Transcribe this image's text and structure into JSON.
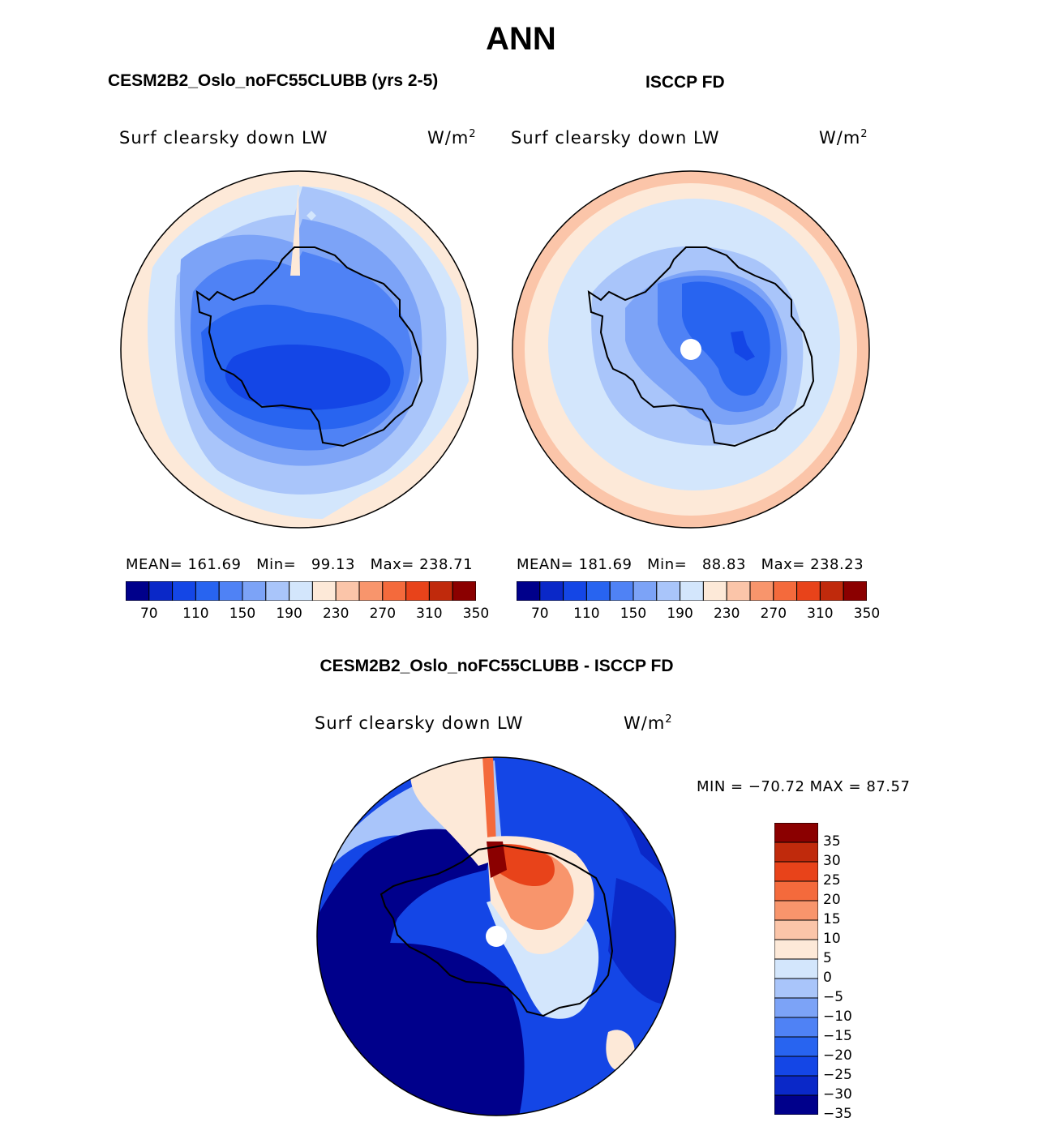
{
  "figure": {
    "title": "ANN",
    "left_panel": {
      "case_title": "CESM2B2_Oslo_noFC55CLUBB (yrs 2-5)",
      "variable": "Surf clearsky down LW",
      "units": "W/m",
      "units_exp": "2",
      "mean_label": "MEAN=",
      "mean": "161.69",
      "min_label": "Min=",
      "min": "99.13",
      "max_label": "Max=",
      "max": "238.71"
    },
    "right_panel": {
      "case_title": "ISCCP FD",
      "variable": "Surf clearsky down LW",
      "units": "W/m",
      "units_exp": "2",
      "mean_label": "MEAN=",
      "mean": "181.69",
      "min_label": "Min=",
      "min": "88.83",
      "max_label": "Max=",
      "max": "238.23"
    },
    "diff_panel": {
      "case_title": "CESM2B2_Oslo_noFC55CLUBB - ISCCP FD",
      "variable": "Surf clearsky down LW",
      "units": "W/m",
      "units_exp": "2",
      "minmax": "MIN = −70.72 MAX =  87.57"
    }
  },
  "colorbar_abs": {
    "colors": [
      "#00008b",
      "#0a28c8",
      "#1446e6",
      "#2864f0",
      "#4f82f5",
      "#7ca3f7",
      "#a9c5fa",
      "#d3e6fc",
      "#fde9d8",
      "#fbc5a9",
      "#f8956c",
      "#f46a3c",
      "#e8431a",
      "#c02a0c",
      "#8b0000"
    ],
    "tick_labels": [
      "70",
      "110",
      "150",
      "190",
      "230",
      "270",
      "310",
      "350"
    ]
  },
  "colorbar_diff": {
    "colors": [
      "#8b0000",
      "#c02a0c",
      "#e8431a",
      "#f46a3c",
      "#f8956c",
      "#fbc5a9",
      "#fde9d8",
      "#d3e6fc",
      "#a9c5fa",
      "#7ca3f7",
      "#4f82f5",
      "#2864f0",
      "#1446e6",
      "#0a28c8",
      "#00008b"
    ],
    "tick_labels": [
      "35",
      "30",
      "25",
      "20",
      "15",
      "10",
      "5",
      "0",
      "−5",
      "−10",
      "−15",
      "−20",
      "−25",
      "−30",
      "−35"
    ]
  }
}
